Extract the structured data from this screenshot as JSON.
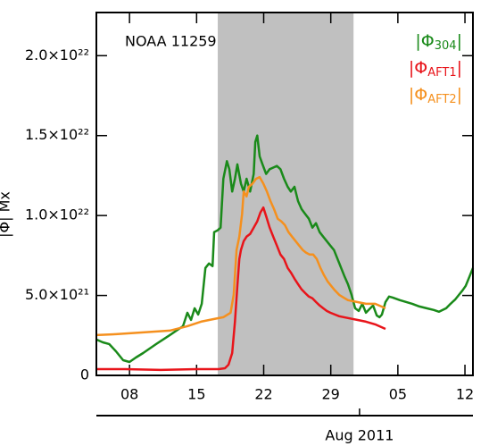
{
  "chart_data": {
    "type": "line",
    "annotation": "NOAA 11259",
    "ylabel": "|Φ| Mx",
    "xlim": [
      "2011-07-04T13:00",
      "2011-08-12T20:00"
    ],
    "xticks": [
      {
        "value": "2011-07-08T00:00",
        "label": "08"
      },
      {
        "value": "2011-07-15T00:00",
        "label": "15"
      },
      {
        "value": "2011-07-22T00:00",
        "label": "22"
      },
      {
        "value": "2011-07-29T00:00",
        "label": "29"
      },
      {
        "value": "2011-08-05T00:00",
        "label": "05"
      },
      {
        "value": "2011-08-12T00:00",
        "label": "12"
      }
    ],
    "x2ticks": [
      {
        "value": "2011-08-01T00:00",
        "label": "Aug 2011"
      }
    ],
    "ylim": [
      0,
      2.27e+22
    ],
    "yticks": [
      0,
      {
        "value": 5e+21,
        "label": "5.0×10²¹"
      },
      {
        "value": 1e+22,
        "label": "1.0×10²²"
      },
      {
        "value": 1.5e+22,
        "label": "1.5×10²²"
      },
      {
        "value": 2e+22,
        "label": "2.0×10²²"
      }
    ],
    "shade": {
      "from": "2011-07-17T05:00",
      "to": "2011-07-31T09:00",
      "color": "#c0c0c0"
    },
    "legend": "upper right",
    "series": [
      {
        "name": "|Φ304|",
        "color": "#1a8a1a",
        "x": [
          "2011-07-04T13:00",
          "2011-07-05T05:00",
          "2011-07-05T21:00",
          "2011-07-06T14:00",
          "2011-07-07T08:00",
          "2011-07-08T00:00",
          "2011-07-08T16:00",
          "2011-07-09T10:00",
          "2011-07-10T19:00",
          "2011-07-12T05:00",
          "2011-07-13T14:00",
          "2011-07-14T01:00",
          "2011-07-14T10:00",
          "2011-07-14T19:00",
          "2011-07-15T04:00",
          "2011-07-15T13:00",
          "2011-07-15T22:00",
          "2011-07-16T07:00",
          "2011-07-16T16:00",
          "2011-07-16T20:00",
          "2011-07-17T05:00",
          "2011-07-17T12:00",
          "2011-07-17T19:00",
          "2011-07-18T04:00",
          "2011-07-18T10:00",
          "2011-07-18T17:00",
          "2011-07-19T00:00",
          "2011-07-19T06:00",
          "2011-07-19T15:00",
          "2011-07-19T22:00",
          "2011-07-20T05:00",
          "2011-07-20T14:00",
          "2011-07-20T23:00",
          "2011-07-21T03:00",
          "2011-07-21T08:00",
          "2011-07-21T14:00",
          "2011-07-21T21:00",
          "2011-07-22T06:00",
          "2011-07-22T15:00",
          "2011-07-23T00:00",
          "2011-07-23T09:00",
          "2011-07-23T18:00",
          "2011-07-24T03:00",
          "2011-07-24T12:00",
          "2011-07-24T20:00",
          "2011-07-25T05:00",
          "2011-07-25T14:00",
          "2011-07-25T23:00",
          "2011-07-26T08:00",
          "2011-07-26T17:00",
          "2011-07-27T02:00",
          "2011-07-27T11:00",
          "2011-07-27T20:00",
          "2011-07-28T05:00",
          "2011-07-28T14:00",
          "2011-07-28T23:00",
          "2011-07-29T08:00",
          "2011-07-29T17:00",
          "2011-07-30T02:00",
          "2011-07-30T11:00",
          "2011-07-30T19:00",
          "2011-07-31T04:00",
          "2011-07-31T13:00",
          "2011-07-31T22:00",
          "2011-08-01T07:00",
          "2011-08-01T16:00",
          "2011-08-02T01:00",
          "2011-08-02T10:00",
          "2011-08-02T19:00",
          "2011-08-03T02:00",
          "2011-08-03T08:00",
          "2011-08-03T17:00",
          "2011-08-04T02:00",
          "2011-08-04T11:00",
          "2011-08-05T05:00",
          "2011-08-05T21:00",
          "2011-08-06T12:00",
          "2011-08-07T06:00",
          "2011-08-08T00:00",
          "2011-08-08T18:00",
          "2011-08-09T07:00",
          "2011-08-10T01:00",
          "2011-08-10T12:00",
          "2011-08-11T00:00",
          "2011-08-11T09:00",
          "2011-08-11T18:00",
          "2011-08-12T02:00",
          "2011-08-12T11:00",
          "2011-08-12T20:00"
        ],
        "values": [
          2.24e+21,
          2.07e+21,
          1.96e+21,
          1.51e+21,
          9.5e+20,
          8.4e+20,
          1.12e+21,
          1.4e+21,
          1.96e+21,
          2.52e+21,
          3.08e+21,
          3.92e+21,
          3.47e+21,
          4.2e+21,
          3.81e+21,
          4.48e+21,
          6.72e+21,
          7e+21,
          6.83e+21,
          8.96e+21,
          9.08e+21,
          9.24e+21,
          1.23e+22,
          1.34e+22,
          1.29e+22,
          1.15e+22,
          1.23e+22,
          1.32e+22,
          1.2e+22,
          1.15e+22,
          1.23e+22,
          1.15e+22,
          1.26e+22,
          1.46e+22,
          1.5e+22,
          1.37e+22,
          1.32e+22,
          1.26e+22,
          1.29e+22,
          1.3e+22,
          1.31e+22,
          1.29e+22,
          1.23e+22,
          1.18e+22,
          1.15e+22,
          1.18e+22,
          1.09e+22,
          1.04e+22,
          1.01e+22,
          9.8e+21,
          9.24e+21,
          9.52e+21,
          8.96e+21,
          8.68e+21,
          8.4e+21,
          8.12e+21,
          7.84e+21,
          7.28e+21,
          6.72e+21,
          6.16e+21,
          5.71e+21,
          5.04e+21,
          4.2e+21,
          4.03e+21,
          4.48e+21,
          3.92e+21,
          4.15e+21,
          4.37e+21,
          3.75e+21,
          3.64e+21,
          3.81e+21,
          4.59e+21,
          4.93e+21,
          4.87e+21,
          4.71e+21,
          4.59e+21,
          4.48e+21,
          4.31e+21,
          4.2e+21,
          4.09e+21,
          3.98e+21,
          4.2e+21,
          4.48e+21,
          4.76e+21,
          5.04e+21,
          5.32e+21,
          5.6e+21,
          6.16e+21,
          6.72e+21
        ]
      },
      {
        "name": "|ΦAFT1|",
        "color": "#e8141a",
        "x": [
          "2011-07-04T13:00",
          "2011-07-07T13:00",
          "2011-07-11T06:00",
          "2011-07-15T00:00",
          "2011-07-17T07:00",
          "2011-07-17T23:00",
          "2011-07-18T08:00",
          "2011-07-18T17:00",
          "2011-07-19T00:00",
          "2011-07-19T06:00",
          "2011-07-19T11:00",
          "2011-07-19T15:00",
          "2011-07-19T22:00",
          "2011-07-20T05:00",
          "2011-07-20T14:00",
          "2011-07-20T23:00",
          "2011-07-21T08:00",
          "2011-07-21T16:00",
          "2011-07-21T23:00",
          "2011-07-22T06:00",
          "2011-07-22T15:00",
          "2011-07-23T00:00",
          "2011-07-23T09:00",
          "2011-07-23T18:00",
          "2011-07-24T03:00",
          "2011-07-24T12:00",
          "2011-07-24T20:00",
          "2011-07-25T05:00",
          "2011-07-25T14:00",
          "2011-07-25T23:00",
          "2011-07-26T08:00",
          "2011-07-26T17:00",
          "2011-07-27T02:00",
          "2011-07-27T11:00",
          "2011-07-27T20:00",
          "2011-07-28T05:00",
          "2011-07-28T14:00",
          "2011-07-28T23:00",
          "2011-07-29T10:00",
          "2011-07-29T21:00",
          "2011-07-30T19:00",
          "2011-07-31T18:00",
          "2011-08-01T16:00",
          "2011-08-02T15:00",
          "2011-08-03T17:00"
        ],
        "values": [
          3.9e+20,
          3.9e+20,
          3.4e+20,
          3.9e+20,
          3.9e+20,
          4.5e+20,
          6.7e+20,
          1.4e+21,
          3.36e+21,
          5.6e+21,
          7.28e+21,
          7.84e+21,
          8.4e+21,
          8.68e+21,
          8.85e+21,
          9.24e+21,
          9.64e+21,
          1.02e+22,
          1.05e+22,
          9.97e+21,
          9.24e+21,
          8.68e+21,
          8.12e+21,
          7.56e+21,
          7.28e+21,
          6.72e+21,
          6.44e+21,
          6.05e+21,
          5.71e+21,
          5.38e+21,
          5.15e+21,
          4.93e+21,
          4.82e+21,
          4.59e+21,
          4.37e+21,
          4.2e+21,
          4.03e+21,
          3.92e+21,
          3.81e+21,
          3.7e+21,
          3.59e+21,
          3.47e+21,
          3.36e+21,
          3.19e+21,
          2.91e+21
        ]
      },
      {
        "name": "|ΦAFT2|",
        "color": "#f5901e",
        "x": [
          "2011-07-04T13:00",
          "2011-07-06T14:00",
          "2011-07-09T10:00",
          "2011-07-12T05:00",
          "2011-07-14T01:00",
          "2011-07-15T11:00",
          "2011-07-16T20:00",
          "2011-07-17T19:00",
          "2011-07-18T13:00",
          "2011-07-18T21:00",
          "2011-07-19T04:00",
          "2011-07-19T11:00",
          "2011-07-19T18:00",
          "2011-07-19T22:00",
          "2011-07-20T05:00",
          "2011-07-20T11:00",
          "2011-07-20T20:00",
          "2011-07-21T05:00",
          "2011-07-21T14:00",
          "2011-07-21T23:00",
          "2011-07-22T08:00",
          "2011-07-22T17:00",
          "2011-07-23T02:00",
          "2011-07-23T11:00",
          "2011-07-23T20:00",
          "2011-07-24T05:00",
          "2011-07-24T14:00",
          "2011-07-24T23:00",
          "2011-07-25T08:00",
          "2011-07-25T17:00",
          "2011-07-26T02:00",
          "2011-07-26T10:00",
          "2011-07-26T19:00",
          "2011-07-27T04:00",
          "2011-07-27T13:00",
          "2011-07-27T22:00",
          "2011-07-28T07:00",
          "2011-07-28T16:00",
          "2011-07-29T01:00",
          "2011-07-29T10:00",
          "2011-07-29T21:00",
          "2011-07-30T08:00",
          "2011-07-30T19:00",
          "2011-07-31T18:00",
          "2011-08-01T16:00",
          "2011-08-02T15:00",
          "2011-08-03T17:00"
        ],
        "values": [
          2.52e+21,
          2.58e+21,
          2.69e+21,
          2.8e+21,
          3.08e+21,
          3.36e+21,
          3.53e+21,
          3.64e+21,
          3.92e+21,
          5.04e+21,
          7.84e+21,
          8.68e+21,
          1.01e+22,
          1.15e+22,
          1.12e+22,
          1.18e+22,
          1.2e+22,
          1.23e+22,
          1.24e+22,
          1.2e+22,
          1.15e+22,
          1.09e+22,
          1.04e+22,
          9.8e+21,
          9.64e+21,
          9.41e+21,
          8.96e+21,
          8.68e+21,
          8.4e+21,
          8.12e+21,
          7.84e+21,
          7.68e+21,
          7.56e+21,
          7.56e+21,
          7.28e+21,
          6.72e+21,
          6.27e+21,
          5.88e+21,
          5.6e+21,
          5.32e+21,
          5.04e+21,
          4.87e+21,
          4.71e+21,
          4.59e+21,
          4.48e+21,
          4.48e+21,
          4.2e+21
        ]
      }
    ]
  }
}
